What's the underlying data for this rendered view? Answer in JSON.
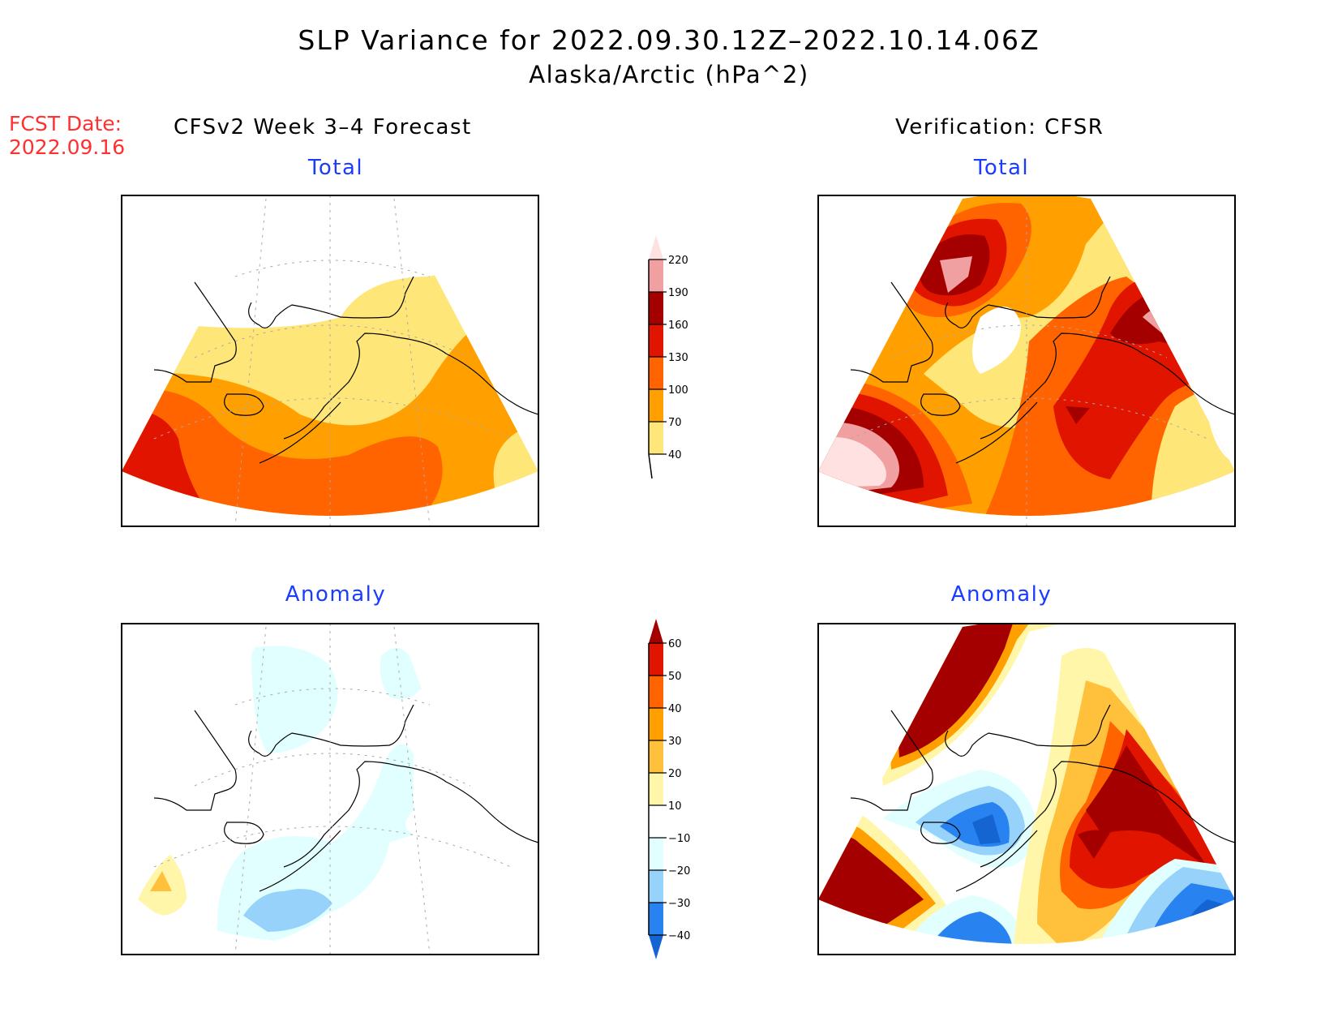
{
  "header": {
    "title": "SLP Variance for 2022.09.30.12Z–2022.10.14.06Z",
    "subtitle": "Alaska/Arctic (hPa^2)"
  },
  "fcst_date": {
    "label": "FCST Date:",
    "value": "2022.09.16"
  },
  "columns": {
    "left": "CFSv2 Week 3–4 Forecast",
    "right": "Verification: CFSR"
  },
  "panel_titles": {
    "total": "Total",
    "anomaly": "Anomaly"
  },
  "chart_data": [
    {
      "type": "heatmap",
      "panel": "forecast-total",
      "title": "Total",
      "units": "hPa^2",
      "region": "Alaska/Arctic",
      "summary": "Values 40-70 over northern/central Alaska rising to 100-130 south of Alaska Peninsula; 130-160 max over western Bering/Kamchatka; white (<40) over Chukchi/Arctic",
      "levels": [
        40,
        70,
        100,
        130,
        160,
        190,
        220
      ]
    },
    {
      "type": "heatmap",
      "panel": "verification-total",
      "title": "Total",
      "units": "hPa^2",
      "region": "Alaska/Arctic",
      "summary": "Maxima >190 over Siberia (north) and >220 over western Bering; 130-190 band over Yukon/NW Canada; minimum <40 over western Alaska",
      "levels": [
        40,
        70,
        100,
        130,
        160,
        190,
        220
      ]
    },
    {
      "type": "heatmap",
      "panel": "forecast-anomaly",
      "title": "Anomaly",
      "units": "hPa^2",
      "region": "Alaska/Arctic",
      "summary": "Weak negative anomalies (-10 to -20) over Bering Sea / Alaska Peninsula and Arctic; small positive (10-30) over far western Bering",
      "levels": [
        -40,
        -30,
        -20,
        -10,
        10,
        20,
        30,
        40,
        50,
        60
      ]
    },
    {
      "type": "heatmap",
      "panel": "verification-anomaly",
      "title": "Anomaly",
      "units": "hPa^2",
      "region": "Alaska/Arctic",
      "summary": "Strong positive (>60) over Siberia, western Bering and NW Canada/Yukon; negative (-30 to -40) over western Alaska, Gulf of Alaska SE and south Bering",
      "levels": [
        -40,
        -30,
        -20,
        -10,
        10,
        20,
        30,
        40,
        50,
        60
      ]
    }
  ],
  "colorbars": {
    "total": {
      "labels": [
        "220",
        "190",
        "160",
        "130",
        "100",
        "70",
        "40"
      ],
      "colors": [
        "#ffe1e1",
        "#f0a0a0",
        "#a50000",
        "#e11400",
        "#ff6400",
        "#ffa000",
        "#ffe678"
      ]
    },
    "anomaly": {
      "labels": [
        "60",
        "50",
        "40",
        "30",
        "20",
        "10",
        "−10",
        "−20",
        "−30",
        "−40"
      ],
      "colors": [
        "#a50000",
        "#e11400",
        "#ff6400",
        "#ffa000",
        "#ffc03c",
        "#fff6aa",
        "#ffffff",
        "#e1ffff",
        "#96d2fa",
        "#2882f0",
        "#1464d2"
      ]
    }
  }
}
